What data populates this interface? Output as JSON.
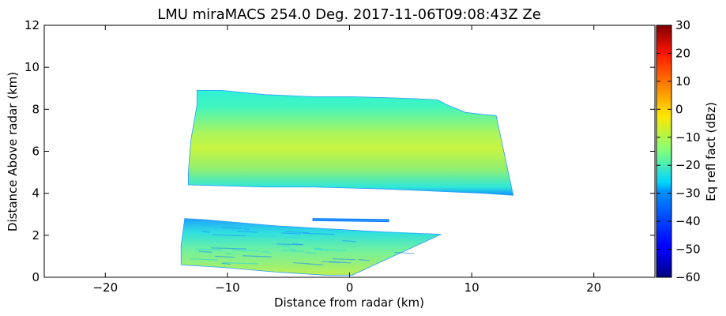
{
  "chart_data": {
    "type": "heatmap",
    "title": "LMU miraMACS 254.0 Deg. 2017-11-06T09:08:43Z  Ze",
    "xlabel": "Distance from radar (km)",
    "ylabel": "Distance Above radar  (km)",
    "xlim": [
      -25,
      25
    ],
    "ylim": [
      0,
      12
    ],
    "x_ticks": [
      -20,
      -10,
      0,
      10,
      20
    ],
    "y_ticks": [
      0,
      2,
      4,
      6,
      8,
      10,
      12
    ],
    "grid": false,
    "colorbar": {
      "label": "Eq refl fact (dBz)",
      "range": [
        -60,
        30
      ],
      "ticks": [
        30,
        20,
        10,
        0,
        -10,
        -20,
        -30,
        -40,
        -50,
        -60
      ],
      "colormap": "jet"
    },
    "regions": [
      {
        "name": "upper-cloud-layer",
        "polygon": [
          [
            -12.5,
            8.9
          ],
          [
            -10.5,
            8.9
          ],
          [
            -7,
            8.7
          ],
          [
            -3,
            8.6
          ],
          [
            0,
            8.6
          ],
          [
            3,
            8.55
          ],
          [
            5.5,
            8.5
          ],
          [
            7.2,
            8.45
          ],
          [
            8.2,
            8.15
          ],
          [
            9.5,
            7.85
          ],
          [
            11,
            7.75
          ],
          [
            12,
            7.7
          ],
          [
            13.4,
            3.9
          ],
          [
            11,
            4.0
          ],
          [
            7,
            4.1
          ],
          [
            3,
            4.2
          ],
          [
            0,
            4.25
          ],
          [
            -3,
            4.3
          ],
          [
            -7,
            4.3
          ],
          [
            -10,
            4.35
          ],
          [
            -13.2,
            4.4
          ],
          [
            -13.2,
            5.0
          ],
          [
            -13.0,
            6.5
          ],
          [
            -12.5,
            8.2
          ]
        ],
        "core_dbz": -10,
        "edge_dbz": -27
      },
      {
        "name": "lower-cloud-layer",
        "polygon": [
          [
            -13.5,
            2.8
          ],
          [
            -12,
            2.75
          ],
          [
            -9,
            2.6
          ],
          [
            -6,
            2.45
          ],
          [
            -3,
            2.35
          ],
          [
            0,
            2.25
          ],
          [
            3,
            2.15
          ],
          [
            5,
            2.1
          ],
          [
            7.5,
            2.05
          ],
          [
            0.2,
            0.1
          ],
          [
            -2,
            0.1
          ],
          [
            -6,
            0.25
          ],
          [
            -10,
            0.45
          ],
          [
            -13.8,
            0.6
          ],
          [
            -13.8,
            1.5
          ]
        ],
        "core_dbz": -20,
        "edge_dbz": -30
      },
      {
        "name": "thin-layer",
        "polygon": [
          [
            -3,
            2.8
          ],
          [
            3.2,
            2.75
          ],
          [
            3.2,
            2.65
          ],
          [
            -3,
            2.7
          ]
        ],
        "core_dbz": -35,
        "edge_dbz": -35
      }
    ]
  }
}
